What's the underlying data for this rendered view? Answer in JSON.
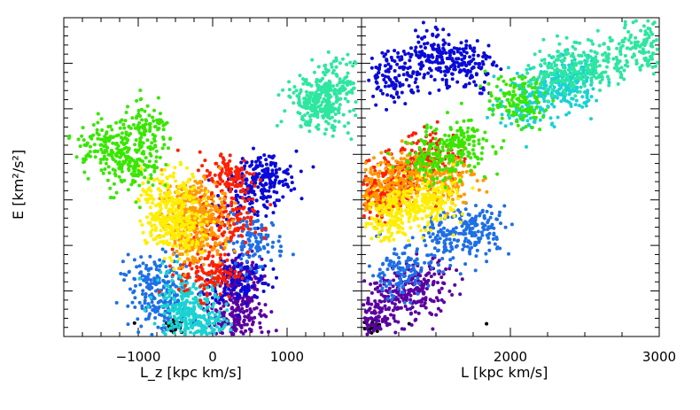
{
  "chart_data": [
    {
      "type": "scatter",
      "panel": "left",
      "xlabel": "L_z [kpc km/s]",
      "ylabel": "E [km²/s²]",
      "xlim": [
        -2000,
        2000
      ],
      "x_ticks": [
        -1000,
        0,
        1000
      ],
      "x_tick_labels": [
        "−1000",
        "0",
        "1000"
      ],
      "series": [
        {
          "color": "#000000",
          "points": [
            [
              -500,
              0.035
            ],
            [
              -1050,
              0.042
            ],
            [
              -580,
              0.06
            ]
          ]
        },
        {
          "color": "#5a00a0",
          "points": [
            [
              270,
              0.09
            ],
            [
              300,
              0.03
            ],
            [
              340,
              0.18
            ]
          ]
        },
        {
          "color": "#0a0ad8",
          "points": [
            [
              520,
              0.45
            ],
            [
              720,
              0.5
            ],
            [
              380,
              0.18
            ]
          ]
        },
        {
          "color": "#1f6fe6",
          "points": [
            [
              -800,
              0.18
            ],
            [
              -690,
              0.09
            ],
            [
              560,
              0.3
            ]
          ]
        },
        {
          "color": "#1ad2d2",
          "points": [
            [
              -300,
              0.05
            ],
            [
              -140,
              0.01
            ],
            [
              -380,
              0.13
            ]
          ]
        },
        {
          "color": "#ff1f00",
          "points": [
            [
              140,
              0.35
            ],
            [
              -50,
              0.2
            ],
            [
              210,
              0.5
            ]
          ]
        },
        {
          "color": "#ff9900",
          "points": [
            [
              -250,
              0.3
            ],
            [
              -220,
              0.42
            ],
            [
              -290,
              0.38
            ]
          ]
        },
        {
          "color": "#ffee00",
          "points": [
            [
              -480,
              0.33
            ],
            [
              -560,
              0.45
            ],
            [
              -590,
              0.37
            ]
          ]
        },
        {
          "color": "#39e600",
          "points": [
            [
              -1450,
              0.6
            ],
            [
              -1100,
              0.53
            ],
            [
              -890,
              0.64
            ]
          ]
        },
        {
          "color": "#2ee6a0",
          "points": [
            [
              1470,
              0.72
            ],
            [
              1660,
              0.79
            ],
            [
              1350,
              0.74
            ]
          ]
        }
      ]
    },
    {
      "type": "scatter",
      "panel": "right",
      "xlabel": "L [kpc km/s]",
      "ylabel": "",
      "xlim": [
        1000,
        3000
      ],
      "x_ticks": [
        2000,
        3000
      ],
      "x_tick_labels": [
        "2000",
        "3000"
      ],
      "series": [
        {
          "color": "#000000",
          "points": [
            [
              1060,
              0.03
            ],
            [
              1320,
              0.04
            ],
            [
              1840,
              0.04
            ]
          ]
        },
        {
          "color": "#5a00a0",
          "points": [
            [
              1050,
              0.06
            ],
            [
              1230,
              0.12
            ],
            [
              1420,
              0.16
            ]
          ]
        },
        {
          "color": "#0a0ad8",
          "points": [
            [
              1230,
              0.82
            ],
            [
              1500,
              0.89
            ],
            [
              1700,
              0.85
            ]
          ]
        },
        {
          "color": "#1f6fe6",
          "points": [
            [
              1250,
              0.2
            ],
            [
              1560,
              0.3
            ],
            [
              1800,
              0.34
            ]
          ]
        },
        {
          "color": "#1ad2d2",
          "points": [
            [
              2100,
              0.73
            ],
            [
              2360,
              0.78
            ],
            [
              2390,
              0.8
            ]
          ]
        },
        {
          "color": "#ff1f00",
          "points": [
            [
              1080,
              0.44
            ],
            [
              1260,
              0.49
            ],
            [
              1470,
              0.57
            ]
          ]
        },
        {
          "color": "#ff9900",
          "points": [
            [
              1120,
              0.46
            ],
            [
              1320,
              0.51
            ],
            [
              1570,
              0.5
            ]
          ]
        },
        {
          "color": "#ffee00",
          "points": [
            [
              1150,
              0.37
            ],
            [
              1350,
              0.41
            ],
            [
              1470,
              0.43
            ]
          ]
        },
        {
          "color": "#39e600",
          "points": [
            [
              1480,
              0.56
            ],
            [
              1680,
              0.6
            ],
            [
              2040,
              0.74
            ]
          ]
        },
        {
          "color": "#2ee6a0",
          "points": [
            [
              2340,
              0.84
            ],
            [
              2600,
              0.86
            ],
            [
              2920,
              0.91
            ]
          ]
        }
      ]
    }
  ]
}
